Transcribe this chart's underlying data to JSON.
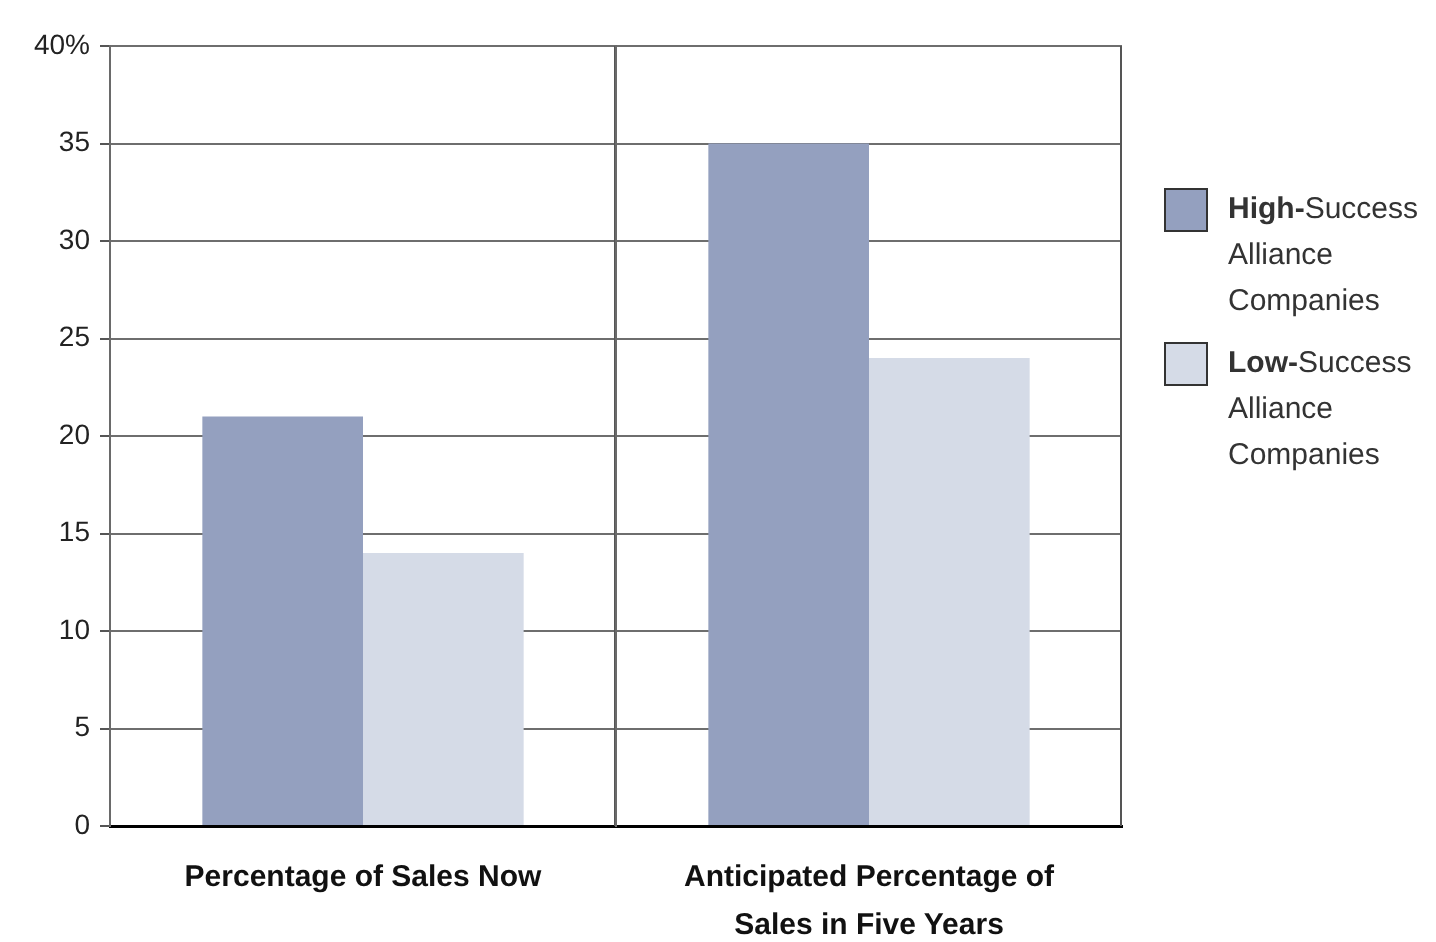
{
  "chart_data": [
    {
      "type": "bar",
      "categories": [
        "Percentage of Sales Now"
      ],
      "series": [
        {
          "name": "High-Success Alliance Companies",
          "color": "#94a0bf",
          "values": [
            21
          ]
        },
        {
          "name": "Low-Success Alliance Companies",
          "color": "#d5dbe7",
          "values": [
            14
          ]
        }
      ],
      "ylim": [
        0,
        40
      ],
      "yticks": [
        0,
        5,
        10,
        15,
        20,
        25,
        30,
        35,
        {
          "value": 40,
          "label": "40%"
        }
      ],
      "grid": "y",
      "legend": "right"
    },
    {
      "type": "bar",
      "categories": [
        "Anticipated Percentage of Sales in Five Years"
      ],
      "series": [
        {
          "color": "#94a0bf",
          "values": [
            35
          ]
        },
        {
          "color": "#d5dbe7",
          "values": [
            24
          ]
        }
      ],
      "ylim": [
        0,
        40
      ],
      "yticks": [
        0,
        5,
        10,
        15,
        20,
        25,
        30,
        35,
        40
      ],
      "grid": "y",
      "tick_labels": "x"
    }
  ]
}
